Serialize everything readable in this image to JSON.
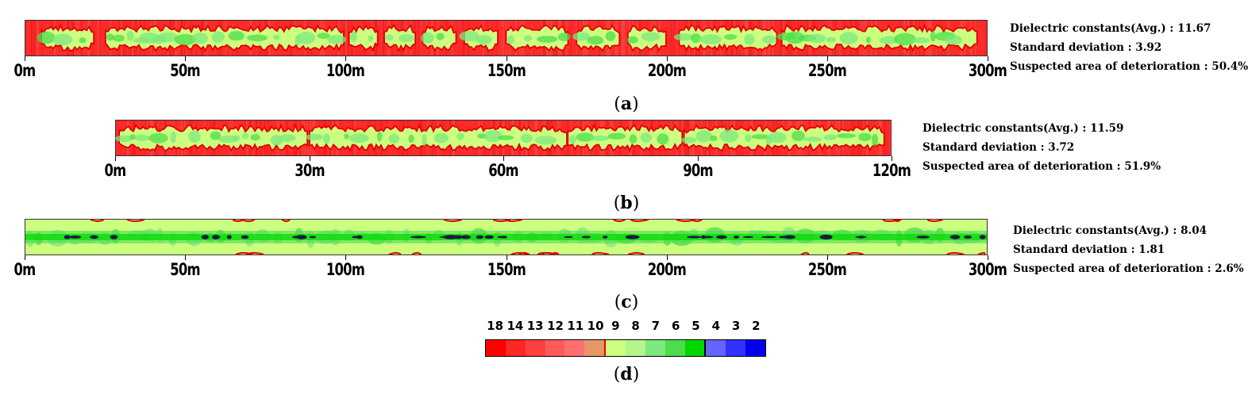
{
  "panels": [
    {
      "id": "a",
      "label": "a",
      "axis": {
        "unit": "m",
        "ticks": [
          0,
          50,
          100,
          150,
          200,
          250,
          300
        ],
        "max": 300
      },
      "stats": [
        "Dielectric constants(Avg.) : 11.67",
        "Standard deviation : 3.92",
        "Suspected area of deterioration : 50.4%"
      ]
    },
    {
      "id": "b",
      "label": "b",
      "axis": {
        "unit": "m",
        "ticks": [
          0,
          30,
          60,
          90,
          120
        ],
        "max": 120
      },
      "stats": [
        "Dielectric constants(Avg.) : 11.59",
        "Standard deviation : 3.72",
        "Suspected area of deterioration : 51.9%"
      ]
    },
    {
      "id": "c",
      "label": "c",
      "axis": {
        "unit": "m",
        "ticks": [
          0,
          50,
          100,
          150,
          200,
          250,
          300
        ],
        "max": 300
      },
      "stats": [
        "Dielectric constants(Avg.) : 8.04",
        "Standard deviation : 1.81",
        "Suspected area of deterioration : 2.6%"
      ]
    }
  ],
  "legend": {
    "label": "d",
    "values": [
      "18",
      "14",
      "13",
      "12",
      "11",
      "10",
      "9",
      "8",
      "7",
      "6",
      "5",
      "4",
      "3",
      "2"
    ],
    "colors": [
      "#ff0000",
      "#ff2626",
      "#ff4040",
      "#ff5a5a",
      "#ff7070",
      "#e8956a",
      "#ccff80",
      "#b4f58a",
      "#7de87d",
      "#4cdc4c",
      "#00d800",
      "#6464ff",
      "#3232ff",
      "#0000ee"
    ]
  },
  "colors": {
    "deteriorated": "#ff2a2a",
    "boundary": "#e00000",
    "sound": "#ccff80",
    "sound_core": "#7de87d",
    "void": "#1a1a40"
  },
  "chart_data": [
    {
      "type": "heatmap",
      "title": "",
      "xlabel": "",
      "ylabel": "",
      "x_ticks": [
        "0m",
        "50m",
        "100m",
        "150m",
        "200m",
        "250m",
        "300m"
      ],
      "xlim": [
        0,
        300
      ],
      "mean_dielectric": 11.67,
      "std_dev": 3.92,
      "deterioration_pct": 50.4,
      "sound_intervals_m": [
        [
          5,
          22
        ],
        [
          25,
          100
        ],
        [
          101,
          110
        ],
        [
          112,
          122
        ],
        [
          124,
          135
        ],
        [
          137,
          148
        ],
        [
          150,
          170
        ],
        [
          172,
          186
        ],
        [
          188,
          200
        ],
        [
          204,
          235
        ],
        [
          236,
          297
        ]
      ]
    },
    {
      "type": "heatmap",
      "title": "",
      "xlabel": "",
      "ylabel": "",
      "x_ticks": [
        "0m",
        "30m",
        "60m",
        "90m",
        "120m"
      ],
      "xlim": [
        0,
        120
      ],
      "mean_dielectric": 11.59,
      "std_dev": 3.72,
      "deterioration_pct": 51.9,
      "sound_intervals_m": [
        [
          0.5,
          30
        ],
        [
          30,
          70
        ],
        [
          70,
          88
        ],
        [
          88,
          119
        ]
      ]
    },
    {
      "type": "heatmap",
      "title": "",
      "xlabel": "",
      "ylabel": "",
      "x_ticks": [
        "0m",
        "50m",
        "100m",
        "150m",
        "200m",
        "250m",
        "300m"
      ],
      "xlim": [
        0,
        300
      ],
      "mean_dielectric": 8.04,
      "std_dev": 1.81,
      "deterioration_pct": 2.6,
      "sound_intervals_m": [
        [
          0,
          300
        ]
      ]
    }
  ]
}
